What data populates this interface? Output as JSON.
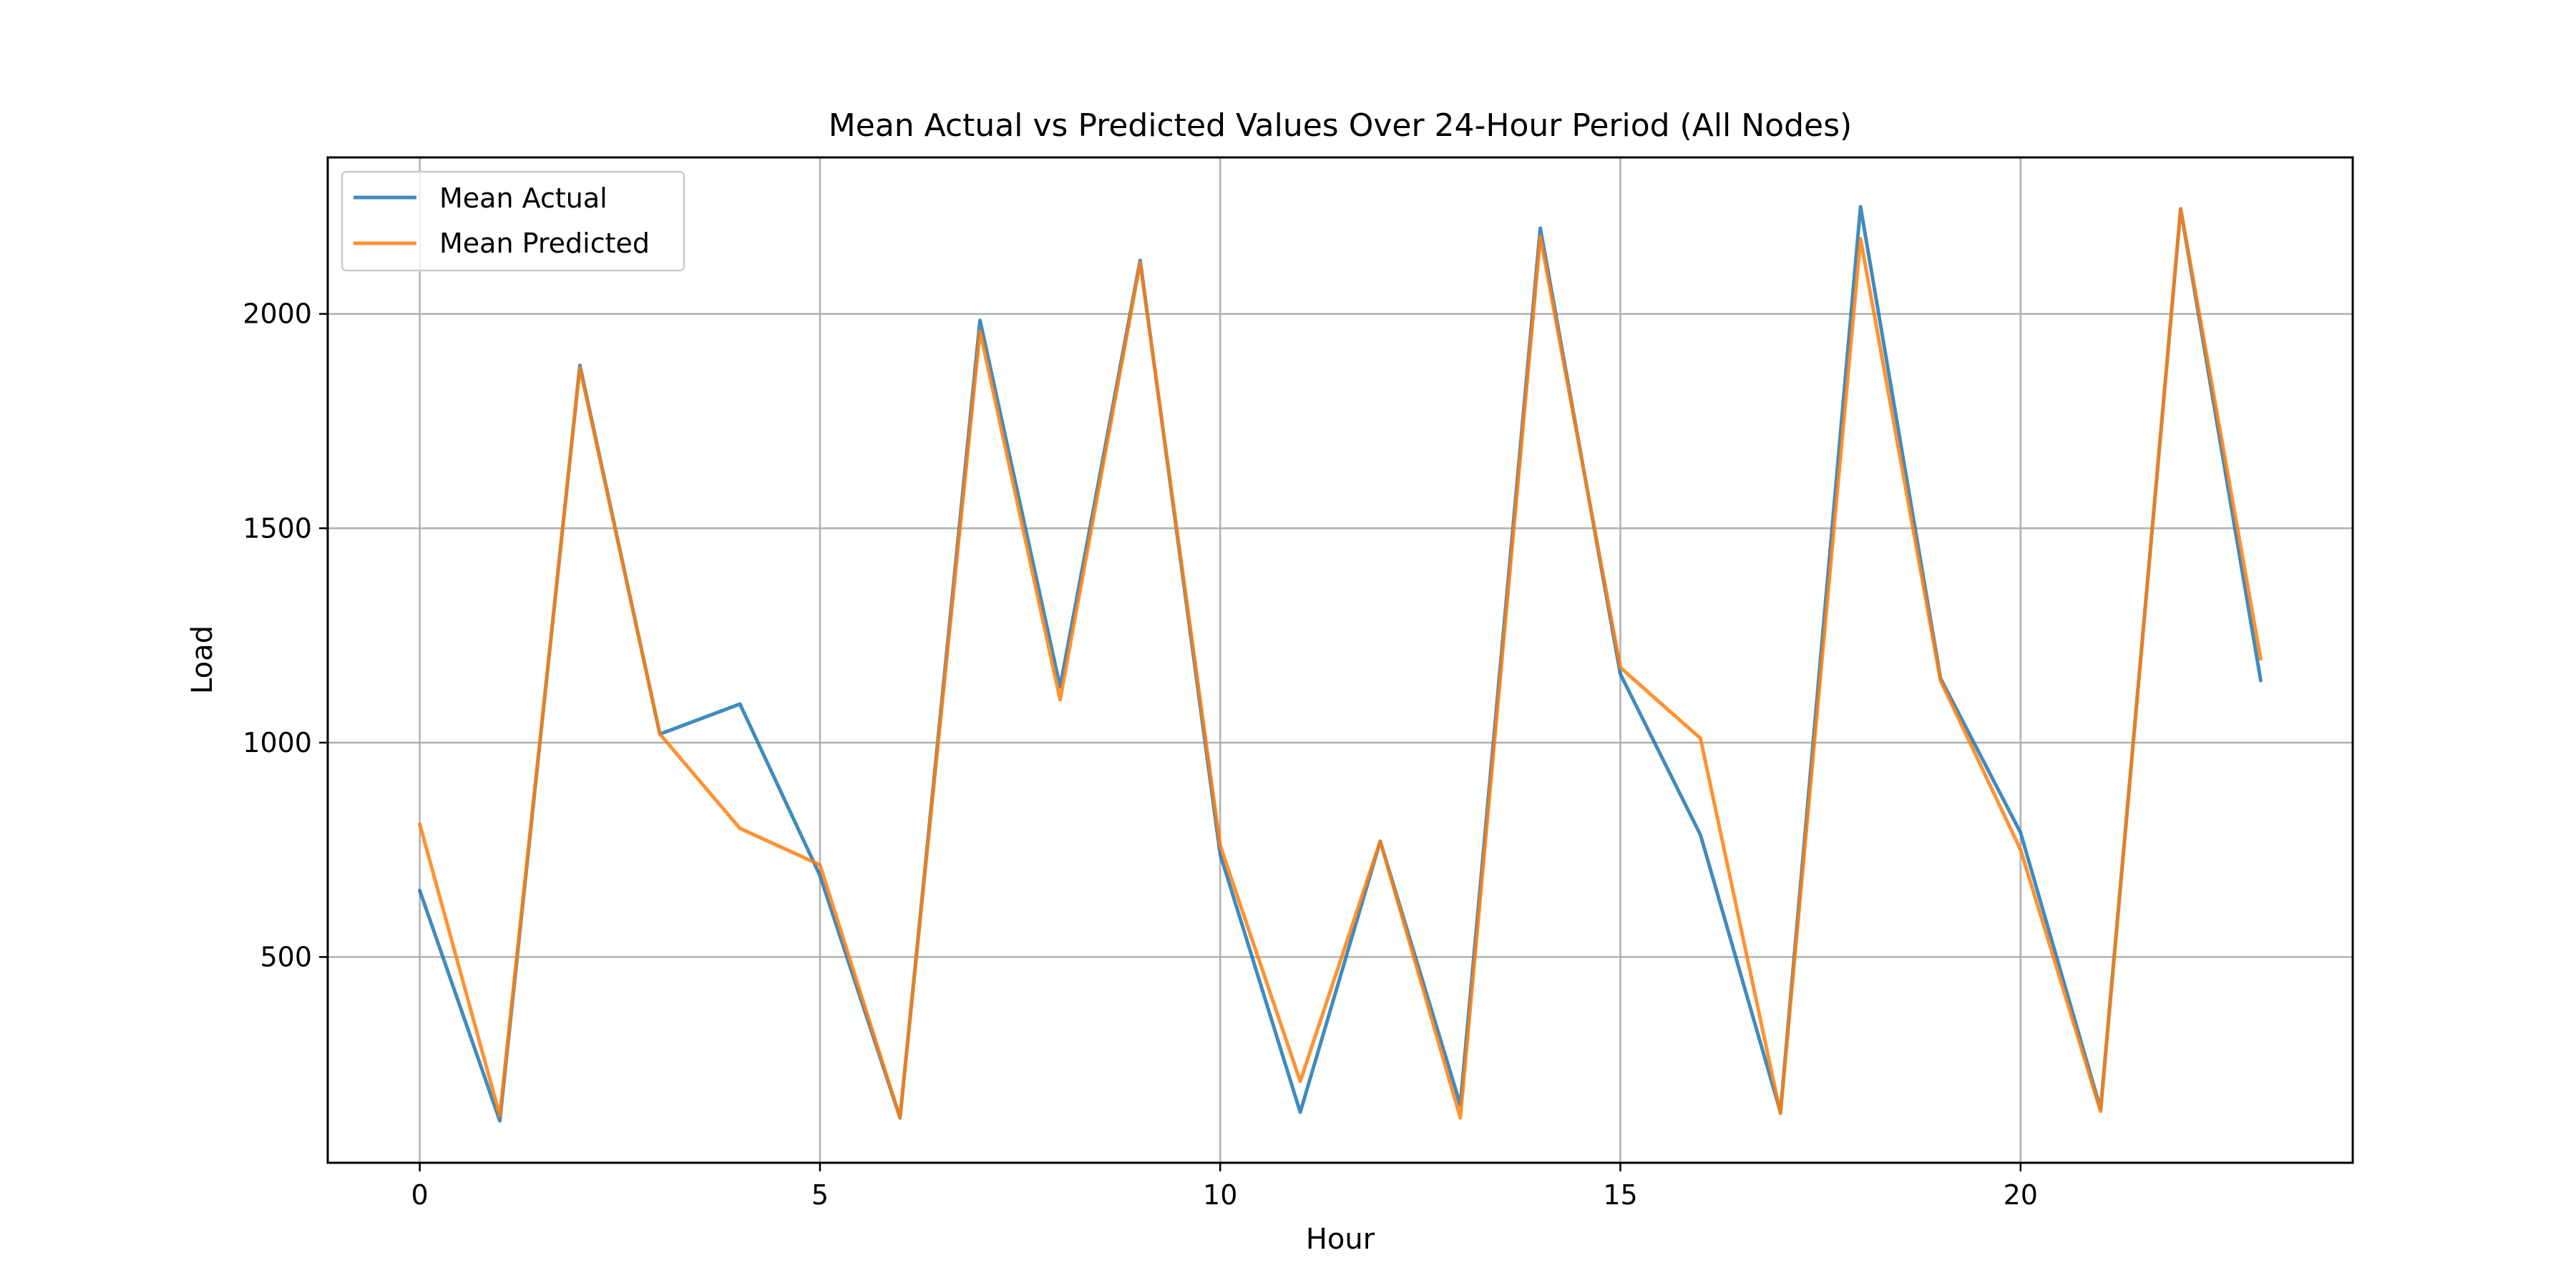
{
  "chart_data": {
    "type": "line",
    "title": "Mean Actual vs Predicted Values Over 24-Hour Period (All Nodes)",
    "xlabel": "Hour",
    "ylabel": "Load",
    "xlim": [
      -1.15,
      24.15
    ],
    "ylim": [
      20,
      2365
    ],
    "xticks": [
      0,
      5,
      10,
      15,
      20
    ],
    "yticks": [
      500,
      1000,
      1500,
      2000
    ],
    "grid": true,
    "legend_position": "top-left",
    "x": [
      0,
      1,
      2,
      3,
      4,
      5,
      6,
      7,
      8,
      9,
      10,
      11,
      12,
      13,
      14,
      15,
      16,
      17,
      18,
      19,
      20,
      21,
      22,
      23
    ],
    "series": [
      {
        "name": "Mean Actual",
        "color": "#1f77b4",
        "values": [
          655,
          118,
          1880,
          1020,
          1090,
          690,
          125,
          1985,
          1130,
          2125,
          740,
          138,
          770,
          155,
          2200,
          1160,
          785,
          138,
          2250,
          1150,
          790,
          145,
          2245,
          1145
        ]
      },
      {
        "name": "Mean Predicted",
        "color": "#ff7f0e",
        "values": [
          810,
          130,
          1875,
          1020,
          800,
          715,
          125,
          1960,
          1100,
          2120,
          760,
          210,
          770,
          125,
          2180,
          1175,
          1010,
          135,
          2175,
          1145,
          750,
          140,
          2245,
          1195
        ]
      }
    ]
  }
}
